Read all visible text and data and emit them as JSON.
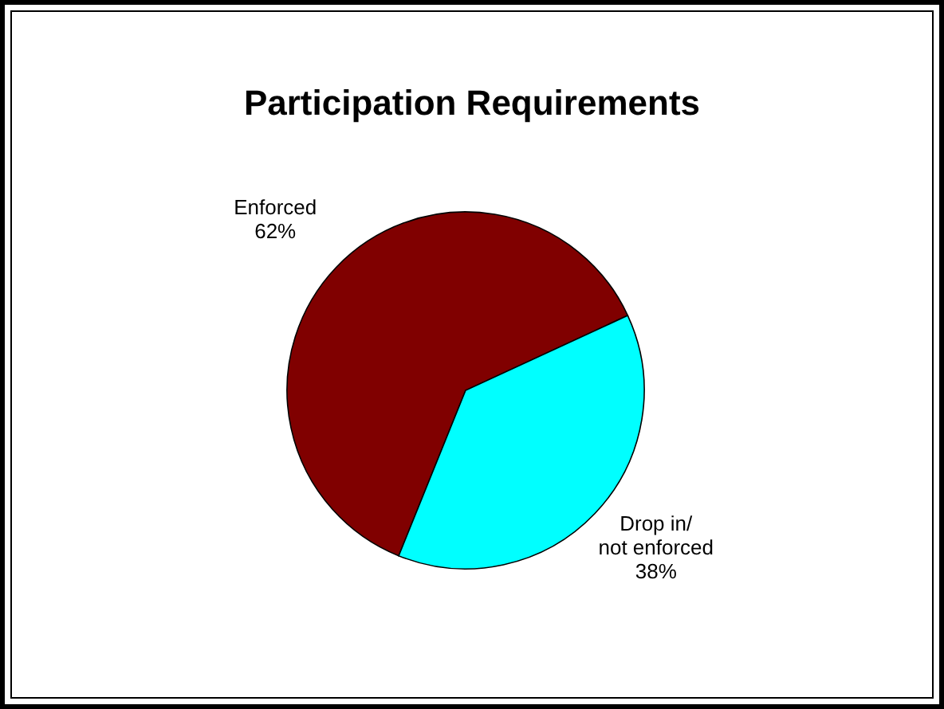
{
  "chart_data": {
    "type": "pie",
    "title": "Participation Requirements",
    "categories": [
      "Enforced",
      "Drop in/\nnot enforced"
    ],
    "values": [
      62,
      38
    ],
    "colors": [
      "#800000",
      "#00ffff"
    ],
    "value_labels": [
      "62%",
      "38%"
    ]
  }
}
